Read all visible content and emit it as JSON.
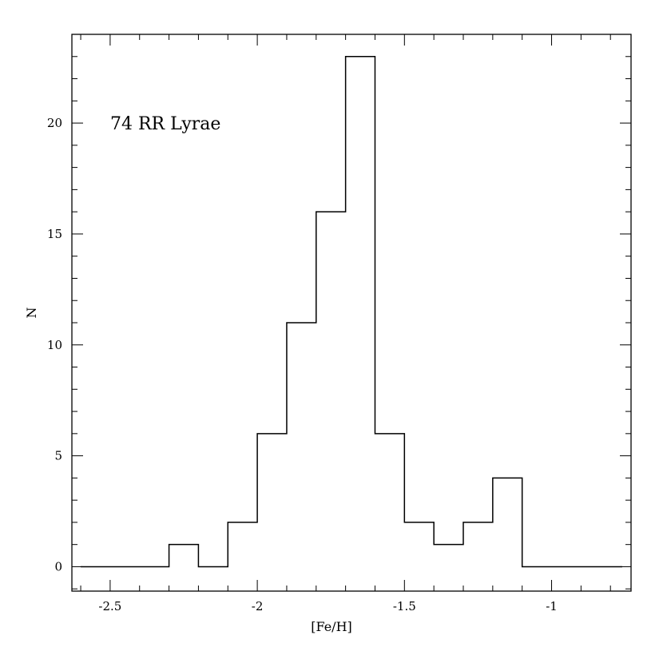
{
  "chart_data": {
    "type": "bar",
    "style": "step-histogram",
    "annotation": "74 RR Lyrae",
    "xlabel": "[Fe/H]",
    "ylabel": "N",
    "xlim": [
      -2.63,
      -0.73
    ],
    "ylim": [
      -1.1,
      24
    ],
    "x_ticks_major": [
      -2.5,
      -2,
      -1.5,
      -1
    ],
    "x_tick_labels": [
      "-2.5",
      "-2",
      "-1.5",
      "-1"
    ],
    "x_minor_step": 0.1,
    "y_ticks_major": [
      0,
      5,
      10,
      15,
      20
    ],
    "y_tick_labels": [
      "0",
      "5",
      "10",
      "15",
      "20"
    ],
    "y_minor_step": 1,
    "grid": false,
    "bins": [
      {
        "x0": -2.6,
        "x1": -2.3,
        "count": 0
      },
      {
        "x0": -2.3,
        "x1": -2.2,
        "count": 1
      },
      {
        "x0": -2.2,
        "x1": -2.1,
        "count": 0
      },
      {
        "x0": -2.1,
        "x1": -2.0,
        "count": 2
      },
      {
        "x0": -2.0,
        "x1": -1.9,
        "count": 6
      },
      {
        "x0": -1.9,
        "x1": -1.8,
        "count": 11
      },
      {
        "x0": -1.8,
        "x1": -1.7,
        "count": 16
      },
      {
        "x0": -1.7,
        "x1": -1.6,
        "count": 23
      },
      {
        "x0": -1.6,
        "x1": -1.5,
        "count": 6
      },
      {
        "x0": -1.5,
        "x1": -1.4,
        "count": 2
      },
      {
        "x0": -1.4,
        "x1": -1.3,
        "count": 1
      },
      {
        "x0": -1.3,
        "x1": -1.2,
        "count": 2
      },
      {
        "x0": -1.2,
        "x1": -1.1,
        "count": 4
      },
      {
        "x0": -1.1,
        "x1": -0.76,
        "count": 0
      }
    ]
  }
}
